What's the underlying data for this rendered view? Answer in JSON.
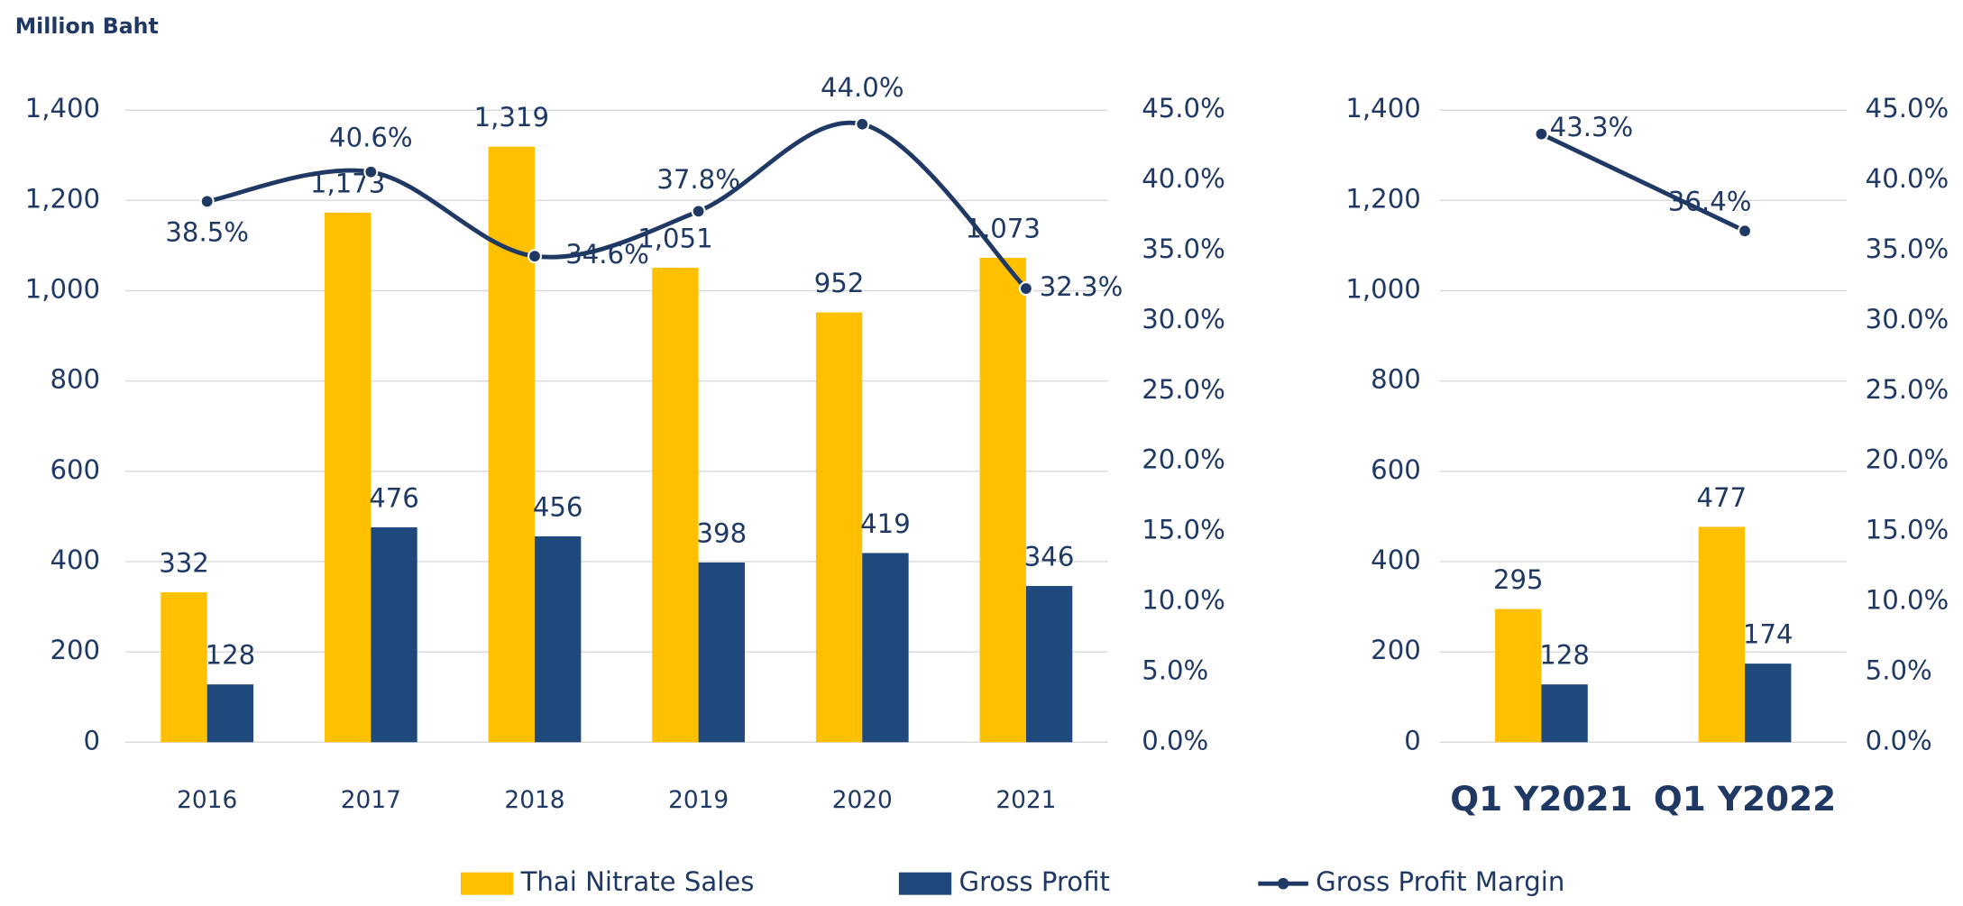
{
  "chart_data": [
    {
      "type": "combo",
      "y_label": "Million Baht",
      "categories": [
        "2016",
        "2017",
        "2018",
        "2019",
        "2020",
        "2021"
      ],
      "series": [
        {
          "name": "Thai Nitrate Sales",
          "color": "#ffc000",
          "kind": "bar",
          "values": [
            332,
            1173,
            1319,
            1051,
            952,
            1073
          ],
          "value_labels": [
            "332",
            "1,173",
            "1,319",
            "1,051",
            "952",
            "1,073"
          ]
        },
        {
          "name": "Gross Profit",
          "color": "#1f497d",
          "kind": "bar",
          "values": [
            128,
            476,
            456,
            398,
            419,
            346
          ]
        },
        {
          "name": "Gross Profit Margin",
          "color": "#1f3864",
          "kind": "line",
          "axis": "y2",
          "smooth": true,
          "values": [
            38.5,
            40.6,
            34.6,
            37.8,
            44.0,
            32.3
          ],
          "value_labels": [
            "38.5%",
            "40.6%",
            "34.6%",
            "37.8%",
            "44.0%",
            "32.3%"
          ]
        }
      ],
      "ylim": [
        0,
        1400
      ],
      "yticks": [
        0,
        200,
        400,
        600,
        800,
        {
          "value": 1000,
          "label": "1,000"
        },
        {
          "value": 1200,
          "label": "1,200"
        },
        {
          "value": 1400,
          "label": "1,400"
        }
      ],
      "y2lim": [
        0,
        45
      ],
      "y2ticks": [
        {
          "value": 0,
          "label": "0.0%"
        },
        {
          "value": 5,
          "label": "5.0%"
        },
        {
          "value": 10,
          "label": "10.0%"
        },
        {
          "value": 15,
          "label": "15.0%"
        },
        {
          "value": 20,
          "label": "20.0%"
        },
        {
          "value": 25,
          "label": "25.0%"
        },
        {
          "value": 30,
          "label": "30.0%"
        },
        {
          "value": 35,
          "label": "35.0%"
        },
        {
          "value": 40,
          "label": "40.0%"
        },
        {
          "value": 45,
          "label": "45.0%"
        }
      ],
      "grid": true,
      "legend": "bottom"
    },
    {
      "type": "combo",
      "categories": [
        "Q1 Y2021",
        "Q1 Y2022"
      ],
      "series": [
        {
          "name": "Thai Nitrate Sales",
          "color": "#ffc000",
          "kind": "bar",
          "values": [
            295,
            477
          ]
        },
        {
          "name": "Gross Profit",
          "color": "#1f497d",
          "kind": "bar",
          "values": [
            128,
            174
          ]
        },
        {
          "name": "Gross Profit Margin",
          "color": "#1f3864",
          "kind": "line",
          "axis": "y2",
          "smooth": false,
          "values": [
            43.3,
            36.4
          ],
          "value_labels": [
            "43.3%",
            "36.4%"
          ]
        }
      ],
      "ylim": [
        0,
        1400
      ],
      "yticks": [
        0,
        200,
        400,
        600,
        800,
        {
          "value": 1000,
          "label": "1,000"
        },
        {
          "value": 1200,
          "label": "1,200"
        },
        {
          "value": 1400,
          "label": "1,400"
        }
      ],
      "y2lim": [
        0,
        45
      ],
      "y2ticks": [
        {
          "value": 0,
          "label": "0.0%"
        },
        {
          "value": 5,
          "label": "5.0%"
        },
        {
          "value": 10,
          "label": "10.0%"
        },
        {
          "value": 15,
          "label": "15.0%"
        },
        {
          "value": 20,
          "label": "20.0%"
        },
        {
          "value": 25,
          "label": "25.0%"
        },
        {
          "value": 30,
          "label": "30.0%"
        },
        {
          "value": 35,
          "label": "35.0%"
        },
        {
          "value": 40,
          "label": "40.0%"
        },
        {
          "value": 45,
          "label": "45.0%"
        }
      ],
      "grid": true
    }
  ]
}
